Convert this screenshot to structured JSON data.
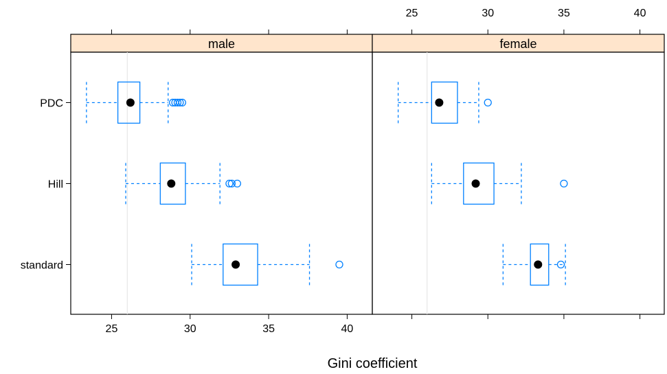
{
  "chart_data": {
    "type": "boxplot",
    "xlabel": "Gini coefficient",
    "xlim": [
      22.4,
      41.6
    ],
    "x_ticks": [
      25,
      30,
      35,
      40
    ],
    "x_tick_labels": [
      "25",
      "30",
      "35",
      "40"
    ],
    "categories": [
      "PDC",
      "Hill",
      "standard"
    ],
    "reference_line": 26.0,
    "grid": false,
    "panels": [
      {
        "strip_label": "male",
        "boxes": [
          {
            "category": "PDC",
            "whisker_low": 23.4,
            "q1": 25.4,
            "median": 26.2,
            "q3": 26.8,
            "whisker_high": 28.6,
            "outliers": [
              28.9,
              29.05,
              29.2,
              29.35,
              29.5
            ]
          },
          {
            "category": "Hill",
            "whisker_low": 25.9,
            "q1": 28.1,
            "median": 28.8,
            "q3": 29.7,
            "whisker_high": 31.9,
            "outliers": [
              32.5,
              32.65,
              33.0
            ]
          },
          {
            "category": "standard",
            "whisker_low": 30.1,
            "q1": 32.1,
            "median": 32.9,
            "q3": 34.3,
            "whisker_high": 37.6,
            "outliers": [
              39.5
            ]
          }
        ]
      },
      {
        "strip_label": "female",
        "boxes": [
          {
            "category": "PDC",
            "whisker_low": 24.1,
            "q1": 26.3,
            "median": 26.8,
            "q3": 28.0,
            "whisker_high": 29.4,
            "outliers": [
              30.0
            ]
          },
          {
            "category": "Hill",
            "whisker_low": 26.3,
            "q1": 28.4,
            "median": 29.2,
            "q3": 30.4,
            "whisker_high": 32.2,
            "outliers": [
              35.0
            ]
          },
          {
            "category": "standard",
            "whisker_low": 31.0,
            "q1": 32.8,
            "median": 33.3,
            "q3": 34.0,
            "whisker_high": 35.1,
            "outliers": [
              34.8
            ]
          }
        ]
      }
    ]
  }
}
